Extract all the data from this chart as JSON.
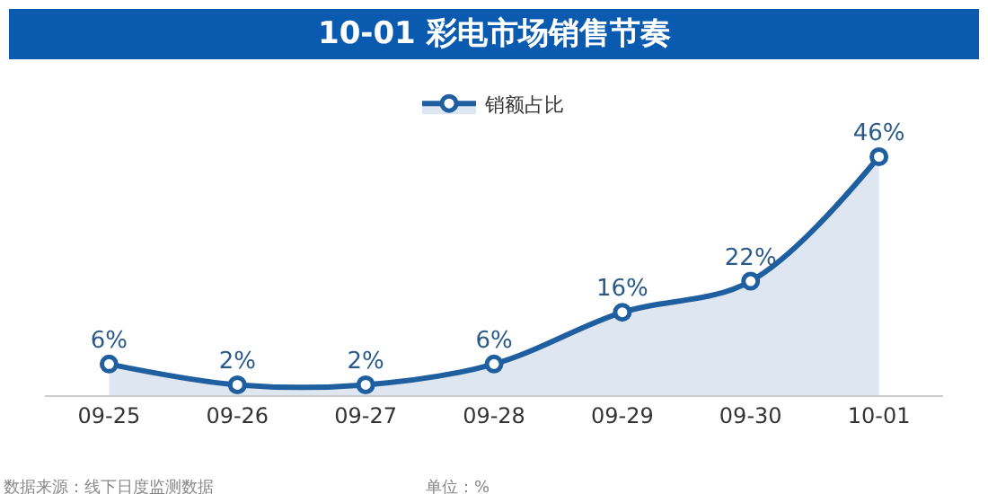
{
  "chart_data": {
    "type": "area",
    "title": "10-01 彩电市场销售节奏",
    "categories": [
      "09-25",
      "09-26",
      "09-27",
      "09-28",
      "09-29",
      "09-30",
      "10-01"
    ],
    "series": [
      {
        "name": "销额占比",
        "color": "#1f5fa0",
        "values": [
          6,
          2,
          2,
          6,
          16,
          22,
          46
        ],
        "value_labels": [
          "6%",
          "2%",
          "2%",
          "6%",
          "16%",
          "22%",
          "46%"
        ]
      }
    ],
    "marker": "circle",
    "legend": "top",
    "grid": false,
    "annotations": [
      "数据来源：线下日度监测数据",
      "单位：%"
    ]
  }
}
